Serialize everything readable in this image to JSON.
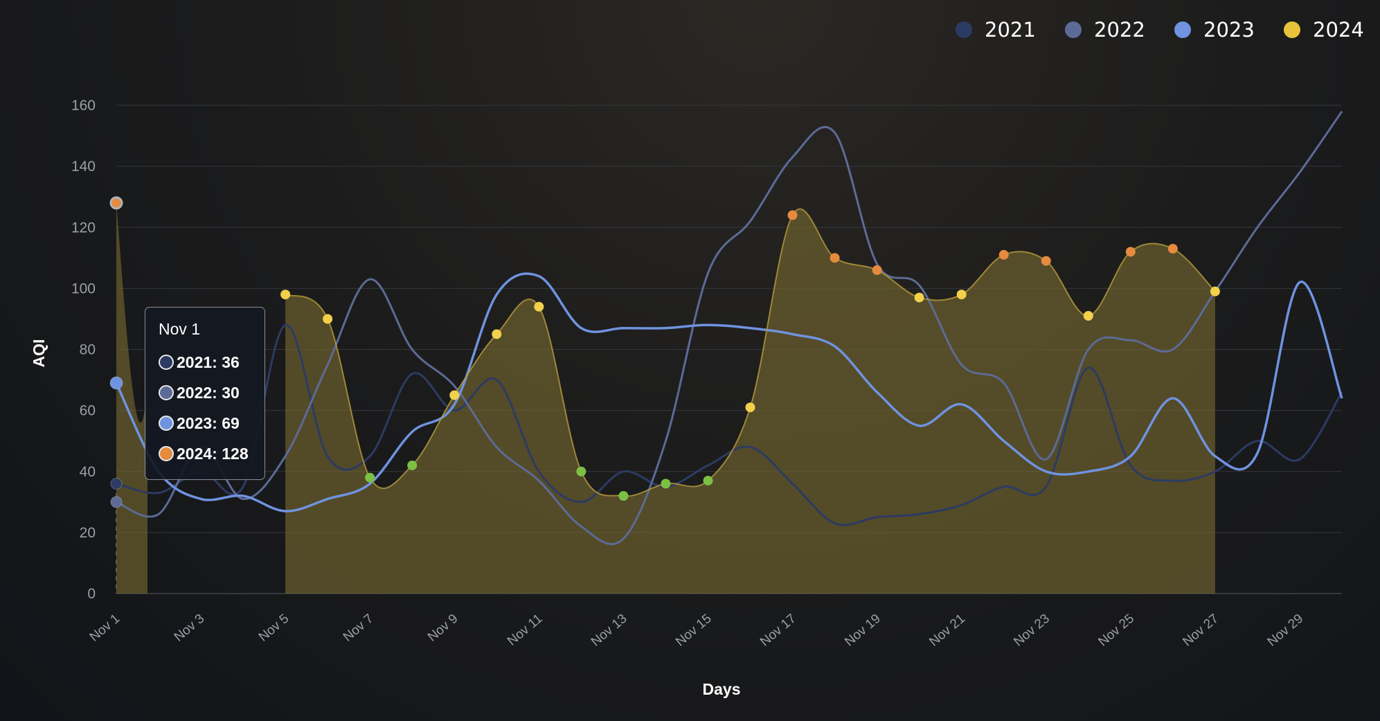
{
  "chart_data": {
    "type": "line",
    "xlabel": "Days",
    "ylabel": "AQI",
    "ylim": [
      0,
      160
    ],
    "yticks": [
      0,
      20,
      40,
      60,
      80,
      100,
      120,
      140,
      160
    ],
    "grid": true,
    "legend_position": "top-right",
    "x": [
      "Nov 1",
      "Nov 2",
      "Nov 3",
      "Nov 4",
      "Nov 5",
      "Nov 6",
      "Nov 7",
      "Nov 8",
      "Nov 9",
      "Nov 10",
      "Nov 11",
      "Nov 12",
      "Nov 13",
      "Nov 14",
      "Nov 15",
      "Nov 16",
      "Nov 17",
      "Nov 18",
      "Nov 19",
      "Nov 20",
      "Nov 21",
      "Nov 22",
      "Nov 23",
      "Nov 24",
      "Nov 25",
      "Nov 26",
      "Nov 27",
      "Nov 28",
      "Nov 29",
      "Nov 30"
    ],
    "xtick_labels": [
      "Nov 1",
      "Nov 3",
      "Nov 5",
      "Nov 7",
      "Nov 9",
      "Nov 11",
      "Nov 13",
      "Nov 15",
      "Nov 17",
      "Nov 19",
      "Nov 21",
      "Nov 23",
      "Nov 25",
      "Nov 27",
      "Nov 29"
    ],
    "series": [
      {
        "name": "2021",
        "color": "#2c3b63",
        "values": [
          36,
          33,
          40,
          35,
          88,
          45,
          45,
          72,
          60,
          70,
          40,
          30,
          40,
          35,
          42,
          48,
          36,
          23,
          25,
          26,
          29,
          35,
          35,
          74,
          42,
          37,
          40,
          50,
          44,
          66
        ]
      },
      {
        "name": "2022",
        "color": "#5c6b96",
        "values": [
          30,
          26,
          48,
          31,
          45,
          75,
          103,
          80,
          68,
          48,
          37,
          22,
          18,
          50,
          105,
          122,
          143,
          151,
          108,
          101,
          75,
          69,
          44,
          80,
          83,
          80,
          99,
          120,
          138,
          158
        ]
      },
      {
        "name": "2023",
        "color": "#6f93e0",
        "values": [
          69,
          40,
          31,
          32,
          27,
          31,
          36,
          53,
          62,
          98,
          104,
          87,
          87,
          87,
          88,
          87,
          85,
          81,
          66,
          55,
          62,
          50,
          40,
          40,
          45,
          64,
          45,
          46,
          102,
          64
        ]
      },
      {
        "name": "2024",
        "color": "#e8c23a",
        "values": [
          128,
          null,
          null,
          null,
          98,
          90,
          38,
          42,
          65,
          85,
          94,
          40,
          32,
          36,
          37,
          61,
          124,
          110,
          106,
          97,
          98,
          111,
          109,
          91,
          112,
          113,
          99,
          null,
          null,
          null
        ]
      }
    ],
    "tooltip": {
      "title": "Nov 1",
      "rows": [
        {
          "label": "2021",
          "value": "36",
          "color": "#2c3b63"
        },
        {
          "label": "2022",
          "value": "30",
          "color": "#5c6b96"
        },
        {
          "label": "2023",
          "value": "69",
          "color": "#6f93e0"
        },
        {
          "label": "2024",
          "value": "128",
          "color": "#e58a3f"
        }
      ]
    },
    "marker_colors": {
      "good": "#7bc043",
      "moderate": "#f2d04b",
      "unhealthy": "#e58a3f"
    }
  }
}
